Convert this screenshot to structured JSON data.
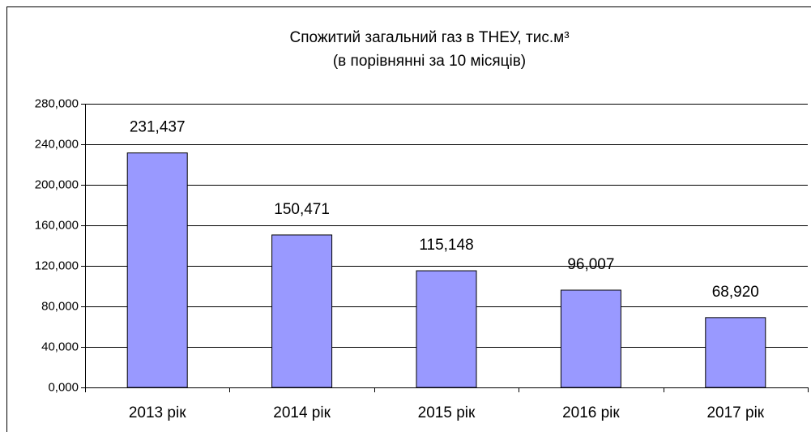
{
  "chart_data": {
    "type": "bar",
    "title": "Спожитий загальний газ в ТНЕУ, тис.м³",
    "subtitle": "(в порівнянні за 10 місяців)",
    "categories": [
      "2013 рік",
      "2014 рік",
      "2015 рік",
      "2016 рік",
      "2017 рік"
    ],
    "values": [
      231.437,
      150.471,
      115.148,
      96.007,
      68.92
    ],
    "value_labels": [
      "231,437",
      "150,471",
      "115,148",
      "96,007",
      "68,920"
    ],
    "color": "#9999ff",
    "ylim": [
      0,
      280
    ],
    "yticks": [
      {
        "value": 0,
        "label": "0,000"
      },
      {
        "value": 40,
        "label": "40,000"
      },
      {
        "value": 80,
        "label": "80,000"
      },
      {
        "value": 120,
        "label": "120,000"
      },
      {
        "value": 160,
        "label": "160,000"
      },
      {
        "value": 200,
        "label": "200,000"
      },
      {
        "value": 240,
        "label": "240,000"
      },
      {
        "value": 280,
        "label": "280,000"
      }
    ],
    "grid": true
  }
}
